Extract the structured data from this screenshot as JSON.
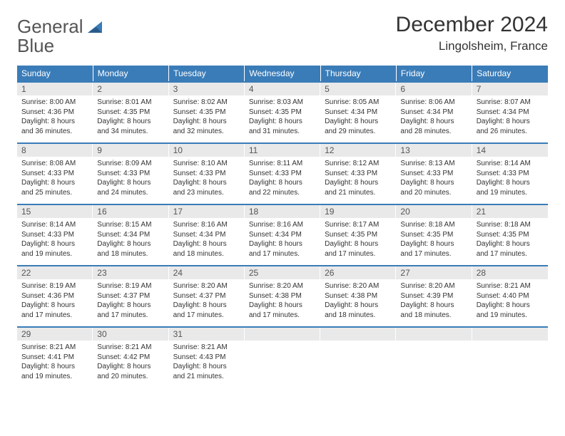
{
  "logo": {
    "textA": "General",
    "textB": "Blue"
  },
  "title": "December 2024",
  "location": "Lingolsheim, France",
  "colors": {
    "header_bg": "#3a7cb8",
    "header_fg": "#ffffff",
    "daynum_bg": "#e9e9e9",
    "text": "#333333",
    "row_border": "#3a7cb8"
  },
  "weekdays": [
    "Sunday",
    "Monday",
    "Tuesday",
    "Wednesday",
    "Thursday",
    "Friday",
    "Saturday"
  ],
  "days": [
    {
      "n": "1",
      "sr": "8:00 AM",
      "ss": "4:36 PM",
      "dl": "8 hours and 36 minutes."
    },
    {
      "n": "2",
      "sr": "8:01 AM",
      "ss": "4:35 PM",
      "dl": "8 hours and 34 minutes."
    },
    {
      "n": "3",
      "sr": "8:02 AM",
      "ss": "4:35 PM",
      "dl": "8 hours and 32 minutes."
    },
    {
      "n": "4",
      "sr": "8:03 AM",
      "ss": "4:35 PM",
      "dl": "8 hours and 31 minutes."
    },
    {
      "n": "5",
      "sr": "8:05 AM",
      "ss": "4:34 PM",
      "dl": "8 hours and 29 minutes."
    },
    {
      "n": "6",
      "sr": "8:06 AM",
      "ss": "4:34 PM",
      "dl": "8 hours and 28 minutes."
    },
    {
      "n": "7",
      "sr": "8:07 AM",
      "ss": "4:34 PM",
      "dl": "8 hours and 26 minutes."
    },
    {
      "n": "8",
      "sr": "8:08 AM",
      "ss": "4:33 PM",
      "dl": "8 hours and 25 minutes."
    },
    {
      "n": "9",
      "sr": "8:09 AM",
      "ss": "4:33 PM",
      "dl": "8 hours and 24 minutes."
    },
    {
      "n": "10",
      "sr": "8:10 AM",
      "ss": "4:33 PM",
      "dl": "8 hours and 23 minutes."
    },
    {
      "n": "11",
      "sr": "8:11 AM",
      "ss": "4:33 PM",
      "dl": "8 hours and 22 minutes."
    },
    {
      "n": "12",
      "sr": "8:12 AM",
      "ss": "4:33 PM",
      "dl": "8 hours and 21 minutes."
    },
    {
      "n": "13",
      "sr": "8:13 AM",
      "ss": "4:33 PM",
      "dl": "8 hours and 20 minutes."
    },
    {
      "n": "14",
      "sr": "8:14 AM",
      "ss": "4:33 PM",
      "dl": "8 hours and 19 minutes."
    },
    {
      "n": "15",
      "sr": "8:14 AM",
      "ss": "4:33 PM",
      "dl": "8 hours and 19 minutes."
    },
    {
      "n": "16",
      "sr": "8:15 AM",
      "ss": "4:34 PM",
      "dl": "8 hours and 18 minutes."
    },
    {
      "n": "17",
      "sr": "8:16 AM",
      "ss": "4:34 PM",
      "dl": "8 hours and 18 minutes."
    },
    {
      "n": "18",
      "sr": "8:16 AM",
      "ss": "4:34 PM",
      "dl": "8 hours and 17 minutes."
    },
    {
      "n": "19",
      "sr": "8:17 AM",
      "ss": "4:35 PM",
      "dl": "8 hours and 17 minutes."
    },
    {
      "n": "20",
      "sr": "8:18 AM",
      "ss": "4:35 PM",
      "dl": "8 hours and 17 minutes."
    },
    {
      "n": "21",
      "sr": "8:18 AM",
      "ss": "4:35 PM",
      "dl": "8 hours and 17 minutes."
    },
    {
      "n": "22",
      "sr": "8:19 AM",
      "ss": "4:36 PM",
      "dl": "8 hours and 17 minutes."
    },
    {
      "n": "23",
      "sr": "8:19 AM",
      "ss": "4:37 PM",
      "dl": "8 hours and 17 minutes."
    },
    {
      "n": "24",
      "sr": "8:20 AM",
      "ss": "4:37 PM",
      "dl": "8 hours and 17 minutes."
    },
    {
      "n": "25",
      "sr": "8:20 AM",
      "ss": "4:38 PM",
      "dl": "8 hours and 17 minutes."
    },
    {
      "n": "26",
      "sr": "8:20 AM",
      "ss": "4:38 PM",
      "dl": "8 hours and 18 minutes."
    },
    {
      "n": "27",
      "sr": "8:20 AM",
      "ss": "4:39 PM",
      "dl": "8 hours and 18 minutes."
    },
    {
      "n": "28",
      "sr": "8:21 AM",
      "ss": "4:40 PM",
      "dl": "8 hours and 19 minutes."
    },
    {
      "n": "29",
      "sr": "8:21 AM",
      "ss": "4:41 PM",
      "dl": "8 hours and 19 minutes."
    },
    {
      "n": "30",
      "sr": "8:21 AM",
      "ss": "4:42 PM",
      "dl": "8 hours and 20 minutes."
    },
    {
      "n": "31",
      "sr": "8:21 AM",
      "ss": "4:43 PM",
      "dl": "8 hours and 21 minutes."
    }
  ],
  "labels": {
    "sunrise": "Sunrise:",
    "sunset": "Sunset:",
    "daylight": "Daylight:"
  },
  "layout": {
    "start_weekday": 0,
    "rows": 5,
    "cols": 7
  }
}
